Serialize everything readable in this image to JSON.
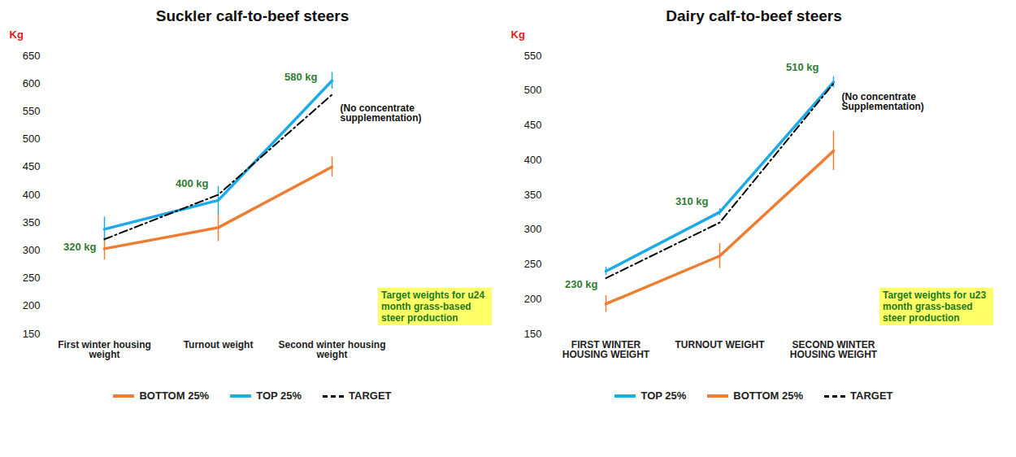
{
  "chart_data": [
    {
      "type": "line",
      "title": "Suckler calf-to-beef steers",
      "y_label": "Kg",
      "categories": [
        "First winter housing weight",
        "Turnout weight",
        "Second winter housing weight"
      ],
      "series": [
        {
          "name": "BOTTOM 25%",
          "color": "#ed7d31",
          "line_style": "solid",
          "values": [
            303,
            341,
            450
          ],
          "errors": [
            20,
            25,
            18
          ]
        },
        {
          "name": "TOP 25%",
          "color": "#1eaae7",
          "line_style": "solid",
          "values": [
            338,
            390,
            605
          ],
          "errors": [
            22,
            25,
            15
          ]
        },
        {
          "name": "TARGET",
          "color": "#000000",
          "line_style": "dashdot",
          "values": [
            320,
            400,
            580
          ],
          "value_labels": [
            "320 kg",
            "400 kg",
            "580 kg"
          ]
        }
      ],
      "annotation": "(No concentrate supplementation)",
      "target_note": "Target weights for u24 month grass-based steer production",
      "ylim": [
        150,
        650
      ],
      "yticks": [
        150,
        200,
        250,
        300,
        350,
        400,
        450,
        500,
        550,
        600,
        650
      ],
      "grid": false,
      "legend": "bottom"
    },
    {
      "type": "line",
      "title": "Dairy calf-to-beef steers",
      "y_label": "Kg",
      "categories": [
        "FIRST WINTER HOUSING WEIGHT",
        "TURNOUT WEIGHT",
        "SECOND WINTER HOUSING WEIGHT"
      ],
      "series": [
        {
          "name": "TOP 25%",
          "color": "#1eaae7",
          "line_style": "solid",
          "values": [
            240,
            325,
            512
          ],
          "errors": [
            6,
            5,
            8
          ]
        },
        {
          "name": "BOTTOM 25%",
          "color": "#ed7d31",
          "line_style": "solid",
          "values": [
            193,
            262,
            413
          ],
          "errors": [
            12,
            18,
            28
          ]
        },
        {
          "name": "TARGET",
          "color": "#000000",
          "line_style": "dashdot",
          "values": [
            230,
            310,
            510
          ],
          "value_labels": [
            "230 kg",
            "310 kg",
            "510 kg"
          ]
        }
      ],
      "annotation": "(No concentrate Supplementation)",
      "target_note": "Target weights for u23 month grass-based steer production",
      "ylim": [
        150,
        550
      ],
      "yticks": [
        150,
        200,
        250,
        300,
        350,
        400,
        450,
        500,
        550
      ],
      "grid": false,
      "legend": "bottom"
    }
  ]
}
